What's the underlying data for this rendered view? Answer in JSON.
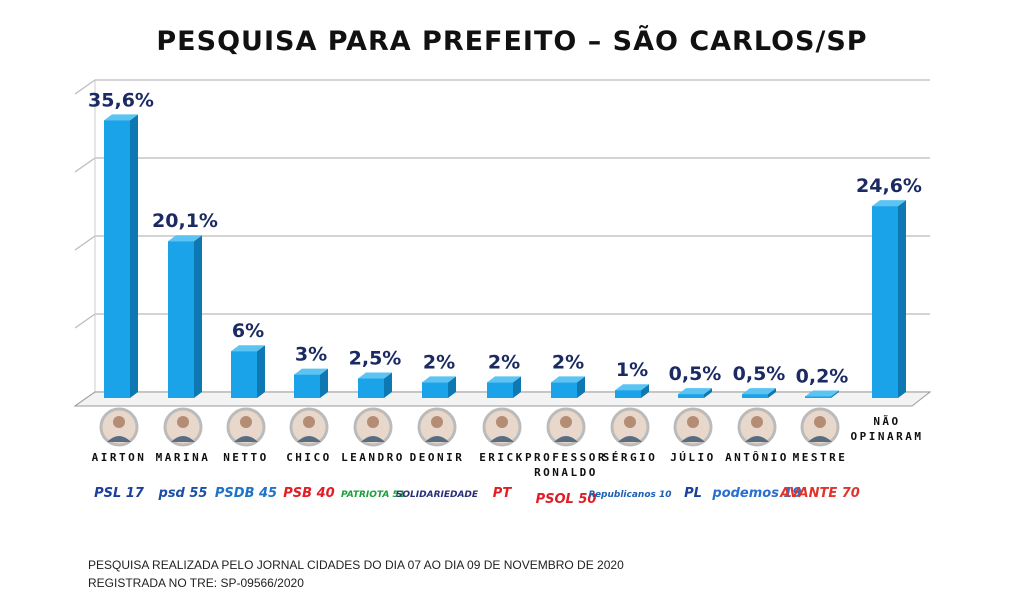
{
  "chart_data": {
    "type": "bar",
    "title": "PESQUISA PARA PREFEITO – SÃO CARLOS/SP",
    "categories": [
      "AIRTON",
      "MARINA",
      "NETTO",
      "CHICO",
      "LEANDRO",
      "DEONIR",
      "ERICK",
      "PROFESSOR RONALDO",
      "SÉRGIO",
      "JÚLIO",
      "ANTÔNIO",
      "MESTRE",
      "NÃO OPINARAM"
    ],
    "values": [
      35.6,
      20.1,
      6,
      3,
      2.5,
      2,
      2,
      2,
      1,
      0.5,
      0.5,
      0.2,
      24.6
    ],
    "data_labels": [
      "35,6%",
      "20,1%",
      "6%",
      "3%",
      "2,5%",
      "2%",
      "2%",
      "2%",
      "1%",
      "0,5%",
      "0,5%",
      "0,2%",
      "24,6%"
    ],
    "parties": [
      "PSL 17",
      "psd 55",
      "PSDB 45",
      "PSB 40",
      "PATRIOTA 51",
      "SOLIDARIEDADE",
      "PT",
      "PSOL 50",
      "Republicanos 10",
      "PL",
      "podemos 19",
      "AVANTE 70",
      ""
    ],
    "party_colors": [
      "#1b3f9a",
      "#1d4fa8",
      "#1e73c8",
      "#e11d25",
      "#1a9e3a",
      "#2a2f7a",
      "#e11d25",
      "#e11d25",
      "#1e5fb0",
      "#1c3e9c",
      "#2a6fd0",
      "#e0342b",
      ""
    ],
    "ylim": [
      0,
      40
    ],
    "grid": true,
    "bar_color": "#1aa3e8",
    "label_color": "#1b2a63"
  },
  "footnote": {
    "line1": "PESQUISA REALIZADA PELO JORNAL CIDADES DO DIA 07  AO DIA 09 DE NOVEMBRO DE 2020",
    "line2": "REGISTRADA NO TRE: SP-09566/2020"
  }
}
